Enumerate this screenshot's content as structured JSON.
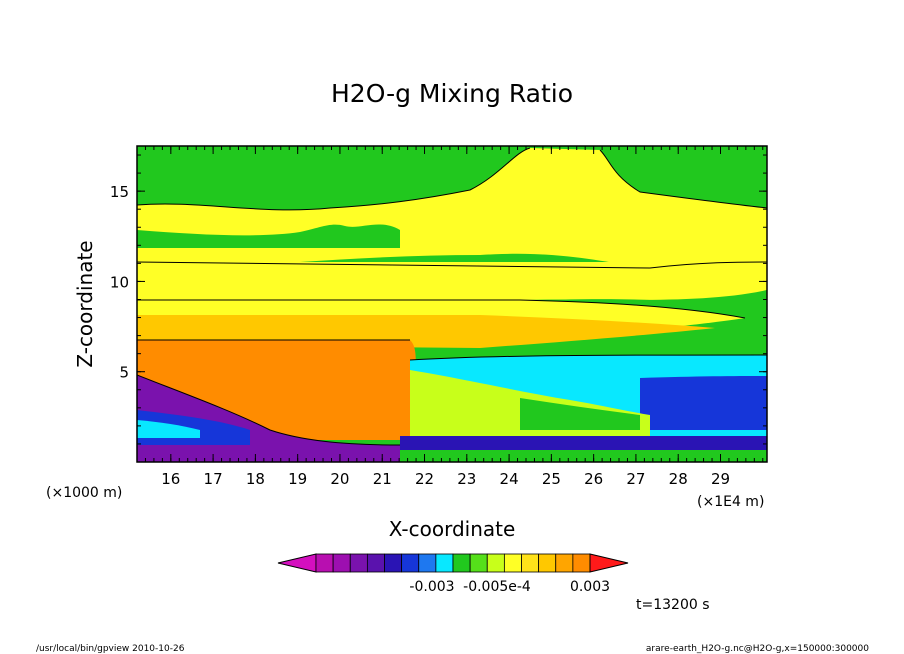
{
  "chart_data": {
    "type": "heatmap",
    "title": "H2O-g Mixing Ratio",
    "xlabel": "X-coordinate",
    "ylabel": "Z-coordinate",
    "x_unit_left": "(×1000 m)",
    "x_unit_right": "(×1E4 m)",
    "x_ticks": [
      "16",
      "17",
      "18",
      "19",
      "20",
      "21",
      "22",
      "23",
      "24",
      "25",
      "26",
      "27",
      "28",
      "29"
    ],
    "y_ticks": [
      "5",
      "10",
      "15"
    ],
    "xlim": [
      15.2,
      30.1
    ],
    "ylim": [
      0,
      17.5
    ],
    "colorbar": {
      "colors": [
        "#d40fbf",
        "#b80fb0",
        "#9d0fb0",
        "#7a12ad",
        "#5a12ad",
        "#2a14b4",
        "#1636d9",
        "#1e78f0",
        "#08e8ff",
        "#21c81e",
        "#55e01a",
        "#c8ff1a",
        "#ffff26",
        "#ffe21a",
        "#ffc800",
        "#ffa500",
        "#ff8c00",
        "#ff1a1a"
      ],
      "labels": [
        "-0.003",
        "-0.005e-4",
        "0.003"
      ]
    },
    "time_label": "t=13200 s",
    "footer_left": "/usr/local/bin/gpview  2010-10-26",
    "footer_right": "arare-earth_H2O-g.nc@H2O-g,x=150000:300000",
    "layers_from_bottom": [
      {
        "name": "indigo",
        "color": "#2a14b4"
      },
      {
        "name": "blue",
        "color": "#1636d9"
      },
      {
        "name": "cyan",
        "color": "#08e8ff"
      },
      {
        "name": "green",
        "color": "#21c81e"
      },
      {
        "name": "yellow-green",
        "color": "#c8ff1a"
      },
      {
        "name": "orange",
        "color": "#ffa500"
      },
      {
        "name": "light-orange",
        "color": "#ffc800"
      },
      {
        "name": "yellow",
        "color": "#ffff26"
      },
      {
        "name": "green-upper",
        "color": "#21c81e"
      }
    ]
  }
}
